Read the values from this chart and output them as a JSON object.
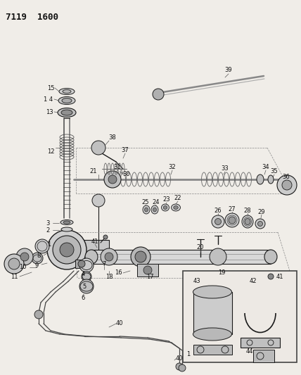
{
  "title": "7119 1600",
  "bg_color": "#f0ede8",
  "title_fontsize": 10,
  "lc": "#1a1a1a",
  "tc": "#111111"
}
